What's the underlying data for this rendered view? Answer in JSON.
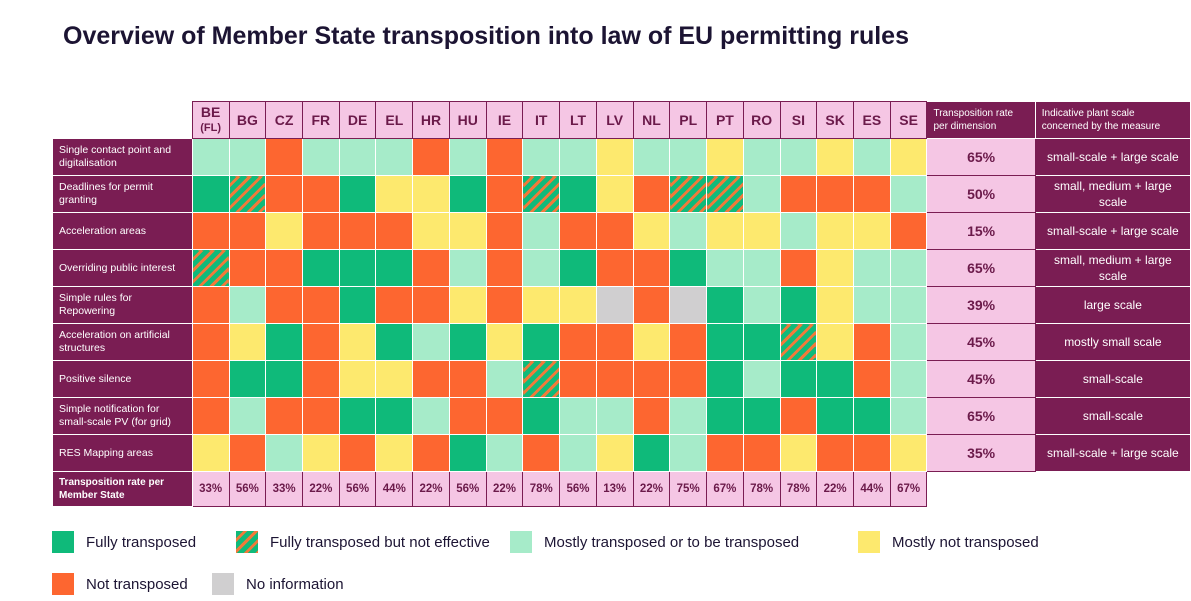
{
  "title": "Overview of Member State transposition into law of EU permitting rules",
  "colors": {
    "F": "#0fba7a",
    "H": "#0fba7a",
    "M": "#a6ebc9",
    "Y": "#fde96e",
    "N": "#fd6630",
    "I": "#d0cfd0",
    "header_fill": "#f5c6e4",
    "dark": "#7a1d53"
  },
  "chart_data": {
    "type": "table",
    "columns": [
      {
        "code": "BE",
        "sub": "(FL)"
      },
      {
        "code": "BG",
        "sub": ""
      },
      {
        "code": "CZ",
        "sub": ""
      },
      {
        "code": "FR",
        "sub": ""
      },
      {
        "code": "DE",
        "sub": ""
      },
      {
        "code": "EL",
        "sub": ""
      },
      {
        "code": "HR",
        "sub": ""
      },
      {
        "code": "HU",
        "sub": ""
      },
      {
        "code": "IE",
        "sub": ""
      },
      {
        "code": "IT",
        "sub": ""
      },
      {
        "code": "LT",
        "sub": ""
      },
      {
        "code": "LV",
        "sub": ""
      },
      {
        "code": "NL",
        "sub": ""
      },
      {
        "code": "PL",
        "sub": ""
      },
      {
        "code": "PT",
        "sub": ""
      },
      {
        "code": "RO",
        "sub": ""
      },
      {
        "code": "SI",
        "sub": ""
      },
      {
        "code": "SK",
        "sub": ""
      },
      {
        "code": "ES",
        "sub": ""
      },
      {
        "code": "SE",
        "sub": ""
      }
    ],
    "rate_header": "Transposition rate per dimension",
    "scale_header": "Indicative plant scale concerned by the measure",
    "rows": [
      {
        "label": "Single contact point and digitalisation",
        "cells": [
          "M",
          "M",
          "N",
          "M",
          "M",
          "M",
          "N",
          "M",
          "N",
          "M",
          "M",
          "Y",
          "M",
          "M",
          "Y",
          "M",
          "M",
          "Y",
          "M",
          "Y"
        ],
        "rate": "65%",
        "scale": "small-scale + large scale"
      },
      {
        "label": "Deadlines for permit granting",
        "cells": [
          "F",
          "H",
          "N",
          "N",
          "F",
          "Y",
          "Y",
          "F",
          "N",
          "H",
          "F",
          "Y",
          "N",
          "H",
          "H",
          "M",
          "N",
          "N",
          "N",
          "M"
        ],
        "rate": "50%",
        "scale": "small, medium + large scale"
      },
      {
        "label": "Acceleration areas",
        "cells": [
          "N",
          "N",
          "Y",
          "N",
          "N",
          "N",
          "Y",
          "Y",
          "N",
          "M",
          "N",
          "N",
          "Y",
          "M",
          "Y",
          "Y",
          "M",
          "Y",
          "Y",
          "N"
        ],
        "rate": "15%",
        "scale": "small-scale + large scale"
      },
      {
        "label": "Overriding public interest",
        "cells": [
          "H",
          "N",
          "N",
          "F",
          "F",
          "F",
          "N",
          "M",
          "N",
          "M",
          "F",
          "N",
          "N",
          "F",
          "M",
          "M",
          "N",
          "Y",
          "M",
          "M"
        ],
        "rate": "65%",
        "scale": "small, medium + large scale"
      },
      {
        "label": "Simple rules for Repowering",
        "cells": [
          "N",
          "M",
          "N",
          "N",
          "F",
          "N",
          "N",
          "Y",
          "N",
          "Y",
          "Y",
          "I",
          "N",
          "I",
          "F",
          "M",
          "F",
          "Y",
          "M",
          "M"
        ],
        "rate": "39%",
        "scale": "large scale"
      },
      {
        "label": "Acceleration on artificial structures",
        "cells": [
          "N",
          "Y",
          "F",
          "N",
          "Y",
          "F",
          "M",
          "F",
          "Y",
          "F",
          "N",
          "N",
          "Y",
          "N",
          "F",
          "F",
          "H",
          "Y",
          "N",
          "M"
        ],
        "rate": "45%",
        "scale": "mostly small scale"
      },
      {
        "label": "Positive silence",
        "cells": [
          "N",
          "F",
          "F",
          "N",
          "Y",
          "Y",
          "N",
          "N",
          "M",
          "H",
          "N",
          "N",
          "N",
          "N",
          "F",
          "M",
          "F",
          "F",
          "N",
          "M"
        ],
        "rate": "45%",
        "scale": "small-scale"
      },
      {
        "label": "Simple notification for small-scale PV (for grid)",
        "cells": [
          "N",
          "M",
          "N",
          "N",
          "F",
          "F",
          "M",
          "N",
          "N",
          "F",
          "M",
          "M",
          "N",
          "M",
          "F",
          "F",
          "N",
          "F",
          "F",
          "M"
        ],
        "rate": "65%",
        "scale": "small-scale"
      },
      {
        "label": "RES Mapping areas",
        "cells": [
          "Y",
          "N",
          "M",
          "Y",
          "N",
          "Y",
          "N",
          "F",
          "M",
          "N",
          "M",
          "Y",
          "F",
          "M",
          "N",
          "N",
          "Y",
          "N",
          "N",
          "Y"
        ],
        "rate": "35%",
        "scale": "small-scale + large scale"
      }
    ],
    "footer_label": "Transposition rate per Member State",
    "member_rates": [
      "33%",
      "56%",
      "33%",
      "22%",
      "56%",
      "44%",
      "22%",
      "56%",
      "22%",
      "78%",
      "56%",
      "13%",
      "22%",
      "75%",
      "67%",
      "78%",
      "78%",
      "22%",
      "44%",
      "67%"
    ]
  },
  "legend": [
    {
      "key": "F",
      "label": "Fully transposed"
    },
    {
      "key": "H",
      "label": "Fully transposed but not effective"
    },
    {
      "key": "M",
      "label": "Mostly transposed or to be transposed"
    },
    {
      "key": "Y",
      "label": "Mostly not transposed"
    },
    {
      "key": "N",
      "label": "Not transposed"
    },
    {
      "key": "I",
      "label": "No information"
    }
  ]
}
